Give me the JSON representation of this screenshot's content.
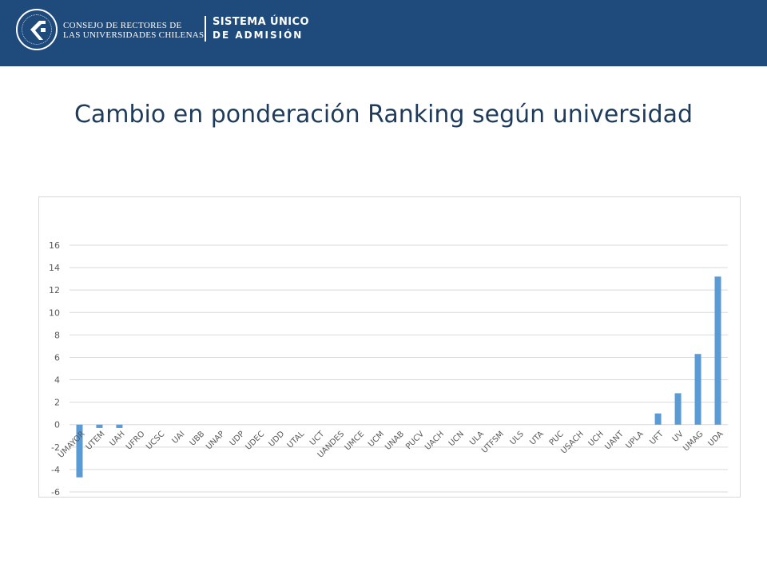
{
  "header": {
    "org_line_1": "CONSEJO DE RECTORES DE",
    "org_line_2": "LAS UNIVERSIDADES CHILENAS",
    "system_line_1": "SISTEMA ÚNICO",
    "system_line_2": "DE ADMISIÓN",
    "logo_icon": "cruch-seal-icon"
  },
  "page": {
    "title": "Cambio en ponderación Ranking según universidad"
  },
  "colors": {
    "header_bg": "#1f4a7c",
    "title_text": "#1f3b5c",
    "bar": "#5b9bd5",
    "grid": "#d9d9d9",
    "tick_text": "#595959"
  },
  "chart_data": {
    "type": "bar",
    "title": "",
    "xlabel": "",
    "ylabel": "",
    "ylim": [
      -6,
      16
    ],
    "yticks": [
      -6,
      -4,
      -2,
      0,
      2,
      4,
      6,
      8,
      10,
      12,
      14,
      16
    ],
    "grid": true,
    "legend": "none",
    "categories": [
      "UMAYOR",
      "UTEM",
      "UAH",
      "UFRO",
      "UCSC",
      "UAI",
      "UBB",
      "UNAP",
      "UDP",
      "UDEC",
      "UDD",
      "UTAL",
      "UCT",
      "UANDES",
      "UMCE",
      "UCM",
      "UNAB",
      "PUCV",
      "UACH",
      "UCN",
      "ULA",
      "UTFSM",
      "ULS",
      "UTA",
      "PUC",
      "USACH",
      "UCH",
      "UANT",
      "UPLA",
      "UFT",
      "UV",
      "UMAG",
      "UDA"
    ],
    "values": [
      -4.7,
      -0.3,
      -0.3,
      0,
      0,
      0,
      0,
      0,
      0,
      0,
      0,
      0,
      0,
      0,
      0,
      0,
      0,
      0,
      0,
      0,
      0,
      0,
      0,
      0,
      0,
      0,
      0,
      0,
      0,
      1.0,
      2.8,
      6.3,
      13.2
    ]
  }
}
